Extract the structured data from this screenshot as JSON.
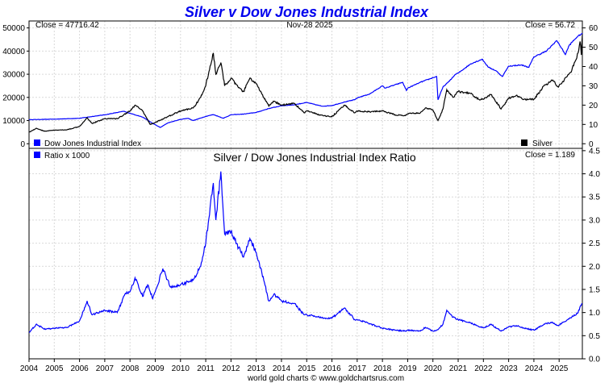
{
  "chart_data": [
    {
      "type": "line",
      "title": "Silver v Dow Jones Industrial Index",
      "date_label": "Nov-28  2025",
      "left_readout": "Close = 47716.42",
      "right_readout": "Close = 56.72",
      "x_ticks": [
        "2004",
        "2005",
        "2006",
        "2007",
        "2008",
        "2009",
        "2010",
        "2011",
        "2012",
        "2013",
        "2014",
        "2015",
        "2016",
        "2017",
        "2018",
        "2019",
        "2020",
        "2021",
        "2022",
        "2023",
        "2024",
        "2025"
      ],
      "x_range": [
        2004.0,
        2025.92
      ],
      "left_axis": {
        "range": [
          -2000,
          53000
        ],
        "ticks": [
          "0",
          "10000",
          "20000",
          "30000",
          "40000",
          "50000"
        ]
      },
      "right_axis": {
        "range": [
          -2.4,
          63.6
        ],
        "ticks": [
          "0",
          "10",
          "20",
          "30",
          "40",
          "50",
          "60"
        ]
      },
      "series": [
        {
          "name": "Dow Jones Industrial Index",
          "axis": "left",
          "color": "#0000ff",
          "points": [
            [
              2004.0,
              10400
            ],
            [
              2005.0,
              10600
            ],
            [
              2006.0,
              11000
            ],
            [
              2007.0,
              12500
            ],
            [
              2007.75,
              14000
            ],
            [
              2008.5,
              11500
            ],
            [
              2008.9,
              8800
            ],
            [
              2009.2,
              7000
            ],
            [
              2009.5,
              9000
            ],
            [
              2010.0,
              10500
            ],
            [
              2010.3,
              11000
            ],
            [
              2010.5,
              10000
            ],
            [
              2011.0,
              11800
            ],
            [
              2011.3,
              12600
            ],
            [
              2011.7,
              11000
            ],
            [
              2012.0,
              12500
            ],
            [
              2012.5,
              12800
            ],
            [
              2013.0,
              13500
            ],
            [
              2013.5,
              15200
            ],
            [
              2014.0,
              16400
            ],
            [
              2014.5,
              16800
            ],
            [
              2015.0,
              17800
            ],
            [
              2015.6,
              16200
            ],
            [
              2016.0,
              16500
            ],
            [
              2016.5,
              18000
            ],
            [
              2016.9,
              19000
            ],
            [
              2017.0,
              19800
            ],
            [
              2017.5,
              21500
            ],
            [
              2018.0,
              25000
            ],
            [
              2018.1,
              24000
            ],
            [
              2018.8,
              26500
            ],
            [
              2018.95,
              23000
            ],
            [
              2019.0,
              24000
            ],
            [
              2019.5,
              26500
            ],
            [
              2020.0,
              28500
            ],
            [
              2020.15,
              29000
            ],
            [
              2020.2,
              19000
            ],
            [
              2020.4,
              24500
            ],
            [
              2020.6,
              26500
            ],
            [
              2020.9,
              30000
            ],
            [
              2021.0,
              30500
            ],
            [
              2021.5,
              34500
            ],
            [
              2021.95,
              36500
            ],
            [
              2022.2,
              33000
            ],
            [
              2022.5,
              31500
            ],
            [
              2022.75,
              29000
            ],
            [
              2023.0,
              33500
            ],
            [
              2023.5,
              34000
            ],
            [
              2023.8,
              33000
            ],
            [
              2024.0,
              37500
            ],
            [
              2024.5,
              40000
            ],
            [
              2024.9,
              44500
            ],
            [
              2025.0,
              43000
            ],
            [
              2025.25,
              38500
            ],
            [
              2025.4,
              42500
            ],
            [
              2025.7,
              46000
            ],
            [
              2025.92,
              47716
            ]
          ]
        },
        {
          "name": "Silver",
          "axis": "right",
          "color": "#000000",
          "points": [
            [
              2004.0,
              6.0
            ],
            [
              2004.3,
              8.0
            ],
            [
              2004.6,
              6.5
            ],
            [
              2005.0,
              7.0
            ],
            [
              2005.5,
              7.2
            ],
            [
              2006.0,
              9.0
            ],
            [
              2006.3,
              13.5
            ],
            [
              2006.5,
              10.5
            ],
            [
              2007.0,
              13.0
            ],
            [
              2007.5,
              13.0
            ],
            [
              2008.0,
              17.0
            ],
            [
              2008.2,
              20.0
            ],
            [
              2008.5,
              17.0
            ],
            [
              2008.8,
              10.0
            ],
            [
              2009.0,
              11.0
            ],
            [
              2009.5,
              14.0
            ],
            [
              2010.0,
              17.0
            ],
            [
              2010.5,
              18.5
            ],
            [
              2010.8,
              24.0
            ],
            [
              2011.0,
              30.0
            ],
            [
              2011.3,
              47.0
            ],
            [
              2011.4,
              36.0
            ],
            [
              2011.6,
              42.0
            ],
            [
              2011.75,
              30.0
            ],
            [
              2012.0,
              34.0
            ],
            [
              2012.3,
              29.0
            ],
            [
              2012.5,
              27.0
            ],
            [
              2012.75,
              34.0
            ],
            [
              2013.0,
              31.0
            ],
            [
              2013.3,
              24.0
            ],
            [
              2013.5,
              19.5
            ],
            [
              2013.7,
              22.0
            ],
            [
              2014.0,
              20.0
            ],
            [
              2014.5,
              21.0
            ],
            [
              2014.9,
              16.0
            ],
            [
              2015.0,
              17.0
            ],
            [
              2015.5,
              15.0
            ],
            [
              2015.9,
              14.0
            ],
            [
              2016.0,
              14.0
            ],
            [
              2016.5,
              20.0
            ],
            [
              2016.9,
              16.0
            ],
            [
              2017.0,
              17.0
            ],
            [
              2017.5,
              16.5
            ],
            [
              2018.0,
              17.0
            ],
            [
              2018.5,
              15.0
            ],
            [
              2018.9,
              14.5
            ],
            [
              2019.0,
              15.5
            ],
            [
              2019.5,
              16.0
            ],
            [
              2019.7,
              18.5
            ],
            [
              2020.0,
              17.5
            ],
            [
              2020.2,
              12.0
            ],
            [
              2020.4,
              18.0
            ],
            [
              2020.55,
              28.0
            ],
            [
              2020.8,
              24.0
            ],
            [
              2021.0,
              27.0
            ],
            [
              2021.5,
              26.0
            ],
            [
              2021.8,
              23.0
            ],
            [
              2022.0,
              23.0
            ],
            [
              2022.3,
              25.5
            ],
            [
              2022.7,
              18.0
            ],
            [
              2023.0,
              23.5
            ],
            [
              2023.3,
              25.0
            ],
            [
              2023.6,
              23.0
            ],
            [
              2024.0,
              23.0
            ],
            [
              2024.4,
              30.0
            ],
            [
              2024.75,
              33.0
            ],
            [
              2024.95,
              29.5
            ],
            [
              2025.2,
              33.0
            ],
            [
              2025.5,
              38.0
            ],
            [
              2025.75,
              47.0
            ],
            [
              2025.83,
              53.0
            ],
            [
              2025.88,
              46.0
            ],
            [
              2025.92,
              56.72
            ]
          ]
        }
      ]
    },
    {
      "type": "line",
      "title": "Silver  /  Dow Jones Industrial Index Ratio",
      "right_readout": "Close = 1.189",
      "y_axis": {
        "range": [
          0.0,
          4.55
        ],
        "ticks": [
          "0.0",
          "0.5",
          "1.0",
          "1.5",
          "2.0",
          "2.5",
          "3.0",
          "3.5",
          "4.0",
          "4.5"
        ]
      },
      "series": [
        {
          "name": "Ratio x 1000",
          "axis": "right",
          "color": "#0000ff",
          "points": [
            [
              2004.0,
              0.57
            ],
            [
              2004.3,
              0.75
            ],
            [
              2004.6,
              0.64
            ],
            [
              2005.0,
              0.66
            ],
            [
              2005.5,
              0.68
            ],
            [
              2006.0,
              0.82
            ],
            [
              2006.3,
              1.25
            ],
            [
              2006.5,
              0.95
            ],
            [
              2007.0,
              1.05
            ],
            [
              2007.5,
              1.0
            ],
            [
              2007.8,
              1.4
            ],
            [
              2008.0,
              1.45
            ],
            [
              2008.2,
              1.75
            ],
            [
              2008.5,
              1.35
            ],
            [
              2008.7,
              1.6
            ],
            [
              2008.9,
              1.3
            ],
            [
              2009.0,
              1.45
            ],
            [
              2009.3,
              1.95
            ],
            [
              2009.6,
              1.55
            ],
            [
              2010.0,
              1.6
            ],
            [
              2010.5,
              1.7
            ],
            [
              2010.8,
              2.0
            ],
            [
              2011.0,
              2.5
            ],
            [
              2011.3,
              3.8
            ],
            [
              2011.4,
              3.0
            ],
            [
              2011.6,
              4.05
            ],
            [
              2011.75,
              2.7
            ],
            [
              2012.0,
              2.75
            ],
            [
              2012.3,
              2.4
            ],
            [
              2012.5,
              2.2
            ],
            [
              2012.75,
              2.6
            ],
            [
              2013.0,
              2.3
            ],
            [
              2013.3,
              1.7
            ],
            [
              2013.5,
              1.25
            ],
            [
              2013.7,
              1.4
            ],
            [
              2014.0,
              1.25
            ],
            [
              2014.5,
              1.2
            ],
            [
              2014.9,
              0.95
            ],
            [
              2015.0,
              0.95
            ],
            [
              2015.5,
              0.9
            ],
            [
              2015.9,
              0.87
            ],
            [
              2016.0,
              0.88
            ],
            [
              2016.5,
              1.1
            ],
            [
              2016.9,
              0.85
            ],
            [
              2017.0,
              0.85
            ],
            [
              2017.5,
              0.76
            ],
            [
              2018.0,
              0.66
            ],
            [
              2018.5,
              0.62
            ],
            [
              2018.9,
              0.6
            ],
            [
              2019.0,
              0.62
            ],
            [
              2019.5,
              0.6
            ],
            [
              2019.7,
              0.68
            ],
            [
              2020.0,
              0.6
            ],
            [
              2020.2,
              0.63
            ],
            [
              2020.4,
              0.75
            ],
            [
              2020.55,
              1.05
            ],
            [
              2020.8,
              0.9
            ],
            [
              2021.0,
              0.85
            ],
            [
              2021.5,
              0.78
            ],
            [
              2021.8,
              0.7
            ],
            [
              2022.0,
              0.67
            ],
            [
              2022.3,
              0.75
            ],
            [
              2022.7,
              0.6
            ],
            [
              2023.0,
              0.69
            ],
            [
              2023.3,
              0.72
            ],
            [
              2023.6,
              0.67
            ],
            [
              2024.0,
              0.62
            ],
            [
              2024.4,
              0.75
            ],
            [
              2024.75,
              0.78
            ],
            [
              2024.95,
              0.72
            ],
            [
              2025.2,
              0.8
            ],
            [
              2025.5,
              0.9
            ],
            [
              2025.75,
              1.0
            ],
            [
              2025.85,
              1.15
            ],
            [
              2025.92,
              1.189
            ]
          ]
        }
      ]
    }
  ],
  "footer": "world gold charts © www.goldchartsrus.com"
}
